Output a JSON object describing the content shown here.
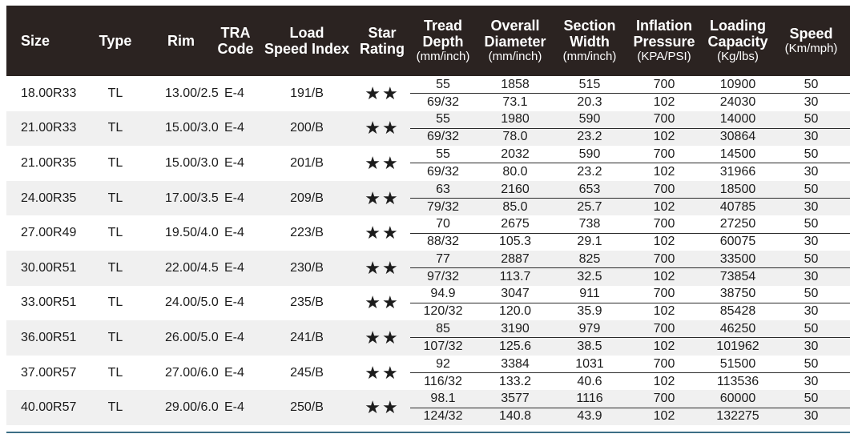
{
  "header": {
    "size": "Size",
    "type": "Type",
    "rim": "Rim",
    "tra": [
      "TRA",
      "Code"
    ],
    "load_speed": [
      "Load",
      "Speed Index"
    ],
    "star": [
      "Star",
      "Rating"
    ],
    "tread": [
      "Tread",
      "Depth"
    ],
    "tread_unit": "(mm/inch)",
    "overall": [
      "Overall",
      "Diameter"
    ],
    "overall_unit": "(mm/inch)",
    "section": [
      "Section",
      "Width"
    ],
    "section_unit": "(mm/inch)",
    "inflation": [
      "Inflation",
      "Pressure"
    ],
    "inflation_unit": "(KPA/PSI)",
    "loading": [
      "Loading",
      "Capacity"
    ],
    "loading_unit": "(Kg/lbs)",
    "speed": "Speed",
    "speed_unit": "(Km/mph)"
  },
  "rows": [
    {
      "size": "18.00R33",
      "type": "TL",
      "rim": "13.00/2.5",
      "tra": "E-4",
      "lsi": "191/B",
      "stars": "★★",
      "tread": [
        "55",
        "69/32"
      ],
      "overall": [
        "1858",
        "73.1"
      ],
      "section": [
        "515",
        "20.3"
      ],
      "inflation": [
        "700",
        "102"
      ],
      "load": [
        "10900",
        "24030"
      ],
      "speed": [
        "50",
        "30"
      ]
    },
    {
      "size": "21.00R33",
      "type": "TL",
      "rim": "15.00/3.0",
      "tra": "E-4",
      "lsi": "200/B",
      "stars": "★★",
      "tread": [
        "55",
        "69/32"
      ],
      "overall": [
        "1980",
        "78.0"
      ],
      "section": [
        "590",
        "23.2"
      ],
      "inflation": [
        "700",
        "102"
      ],
      "load": [
        "14000",
        "30864"
      ],
      "speed": [
        "50",
        "30"
      ]
    },
    {
      "size": "21.00R35",
      "type": "TL",
      "rim": "15.00/3.0",
      "tra": "E-4",
      "lsi": "201/B",
      "stars": "★★",
      "tread": [
        "55",
        "69/32"
      ],
      "overall": [
        "2032",
        "80.0"
      ],
      "section": [
        "590",
        "23.2"
      ],
      "inflation": [
        "700",
        "102"
      ],
      "load": [
        "14500",
        "31966"
      ],
      "speed": [
        "50",
        "30"
      ]
    },
    {
      "size": "24.00R35",
      "type": "TL",
      "rim": "17.00/3.5",
      "tra": "E-4",
      "lsi": "209/B",
      "stars": "★★",
      "tread": [
        "63",
        "79/32"
      ],
      "overall": [
        "2160",
        "85.0"
      ],
      "section": [
        "653",
        "25.7"
      ],
      "inflation": [
        "700",
        "102"
      ],
      "load": [
        "18500",
        "40785"
      ],
      "speed": [
        "50",
        "30"
      ]
    },
    {
      "size": "27.00R49",
      "type": "TL",
      "rim": "19.50/4.0",
      "tra": "E-4",
      "lsi": "223/B",
      "stars": "★★",
      "tread": [
        "70",
        "88/32"
      ],
      "overall": [
        "2675",
        "105.3"
      ],
      "section": [
        "738",
        "29.1"
      ],
      "inflation": [
        "700",
        "102"
      ],
      "load": [
        "27250",
        "60075"
      ],
      "speed": [
        "50",
        "30"
      ]
    },
    {
      "size": "30.00R51",
      "type": "TL",
      "rim": "22.00/4.5",
      "tra": "E-4",
      "lsi": "230/B",
      "stars": "★★",
      "tread": [
        "77",
        "97/32"
      ],
      "overall": [
        "2887",
        "113.7"
      ],
      "section": [
        "825",
        "32.5"
      ],
      "inflation": [
        "700",
        "102"
      ],
      "load": [
        "33500",
        "73854"
      ],
      "speed": [
        "50",
        "30"
      ]
    },
    {
      "size": "33.00R51",
      "type": "TL",
      "rim": "24.00/5.0",
      "tra": "E-4",
      "lsi": "235/B",
      "stars": "★★",
      "tread": [
        "94.9",
        "120/32"
      ],
      "overall": [
        "3047",
        "120.0"
      ],
      "section": [
        "911",
        "35.9"
      ],
      "inflation": [
        "700",
        "102"
      ],
      "load": [
        "38750",
        "85428"
      ],
      "speed": [
        "50",
        "30"
      ]
    },
    {
      "size": "36.00R51",
      "type": "TL",
      "rim": "26.00/5.0",
      "tra": "E-4",
      "lsi": "241/B",
      "stars": "★★",
      "tread": [
        "85",
        "107/32"
      ],
      "overall": [
        "3190",
        "125.6"
      ],
      "section": [
        "979",
        "38.5"
      ],
      "inflation": [
        "700",
        "102"
      ],
      "load": [
        "46250",
        "101962"
      ],
      "speed": [
        "50",
        "30"
      ]
    },
    {
      "size": "37.00R57",
      "type": "TL",
      "rim": "27.00/6.0",
      "tra": "E-4",
      "lsi": "245/B",
      "stars": "★★",
      "tread": [
        "92",
        "116/32"
      ],
      "overall": [
        "3384",
        "133.2"
      ],
      "section": [
        "1031",
        "40.6"
      ],
      "inflation": [
        "700",
        "102"
      ],
      "load": [
        "51500",
        "113536"
      ],
      "speed": [
        "50",
        "30"
      ]
    },
    {
      "size": "40.00R57",
      "type": "TL",
      "rim": "29.00/6.0",
      "tra": "E-4",
      "lsi": "250/B",
      "stars": "★★",
      "tread": [
        "98.1",
        "124/32"
      ],
      "overall": [
        "3577",
        "140.8"
      ],
      "section": [
        "1116",
        "43.9"
      ],
      "inflation": [
        "700",
        "102"
      ],
      "load": [
        "60000",
        "132275"
      ],
      "speed": [
        "50",
        "30"
      ]
    }
  ]
}
